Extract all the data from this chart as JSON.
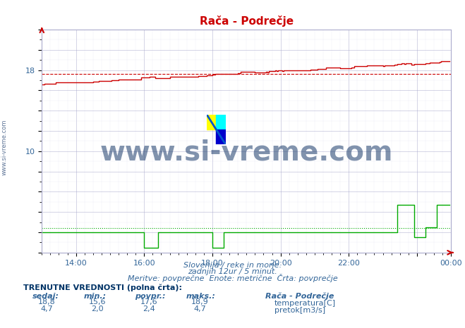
{
  "title": "Rača - Podrečje",
  "title_color": "#cc0000",
  "bg_color": "#ffffff",
  "plot_bg_color": "#ffffff",
  "grid_color_major": "#aaaacc",
  "grid_color_minor": "#ddddee",
  "xlim": [
    0,
    288
  ],
  "ylim": [
    0,
    22
  ],
  "avg_temp_line": 17.6,
  "avg_flow_line": 2.4,
  "temp_color": "#cc0000",
  "flow_color": "#00aa00",
  "watermark_text": "www.si-vreme.com",
  "watermark_color": "#1a3a6b",
  "left_label": "www.si-vreme.com",
  "footer_line1": "Slovenija / reke in morje.",
  "footer_line2": "zadnjih 12ur / 5 minut.",
  "footer_line3": "Meritve: povprečne  Enote: metrične  Črta: povprečje",
  "footer_color": "#336699",
  "table_header": "TRENUTNE VREDNOSTI (polna črta):",
  "table_cols": [
    "sedaj:",
    "min.:",
    "povpr.:",
    "maks.:"
  ],
  "table_row1": [
    "18,8",
    "15,6",
    "17,6",
    "18,9"
  ],
  "table_row2": [
    "4,7",
    "2,0",
    "2,4",
    "4,7"
  ],
  "legend_label1": "temperatura[C]",
  "legend_label2": "pretok[m3/s]",
  "legend_title": "Rača - Podrečje",
  "table_color": "#336699",
  "table_header_color": "#003366"
}
